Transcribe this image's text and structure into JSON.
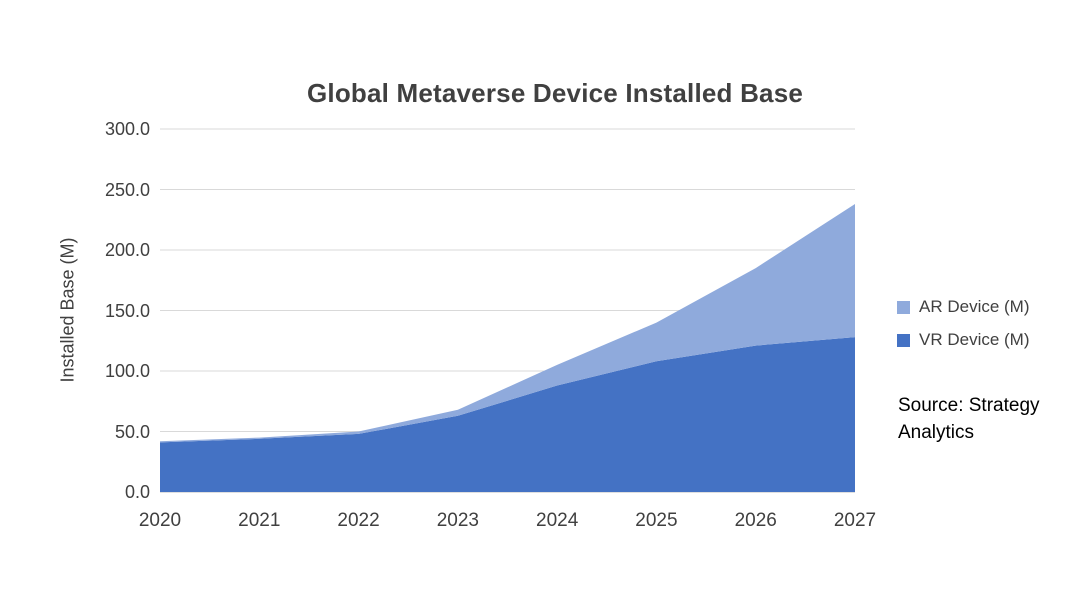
{
  "chart": {
    "title": "Global Metaverse Device Installed Base",
    "ylabel": "Installed Base (M)",
    "legend": [
      {
        "label": "AR Device (M)",
        "color": "#8FAADC"
      },
      {
        "label": "VR Device (M)",
        "color": "#4472C4"
      }
    ],
    "source": "Source: Strategy Analytics"
  },
  "chart_data": {
    "type": "area",
    "stacked": true,
    "title": "Global Metaverse Device Installed Base",
    "xlabel": "",
    "ylabel": "Installed Base (M)",
    "x": [
      "2020",
      "2021",
      "2022",
      "2023",
      "2024",
      "2025",
      "2026",
      "2027"
    ],
    "series": [
      {
        "name": "VR Device (M)",
        "color": "#4472C4",
        "values": [
          41,
          44,
          48,
          63,
          88,
          108,
          121,
          128
        ]
      },
      {
        "name": "AR Device (M)",
        "color": "#8FAADC",
        "values": [
          1,
          1,
          2,
          5,
          17,
          32,
          64,
          110
        ]
      }
    ],
    "ylim": [
      0,
      300
    ],
    "yticks": [
      0,
      50,
      100,
      150,
      200,
      250,
      300
    ],
    "ytick_labels": [
      "0.0",
      "50.0",
      "100.0",
      "150.0",
      "200.0",
      "250.0",
      "300.0"
    ],
    "grid": true,
    "legend_position": "right",
    "source": "Source: Strategy Analytics"
  }
}
